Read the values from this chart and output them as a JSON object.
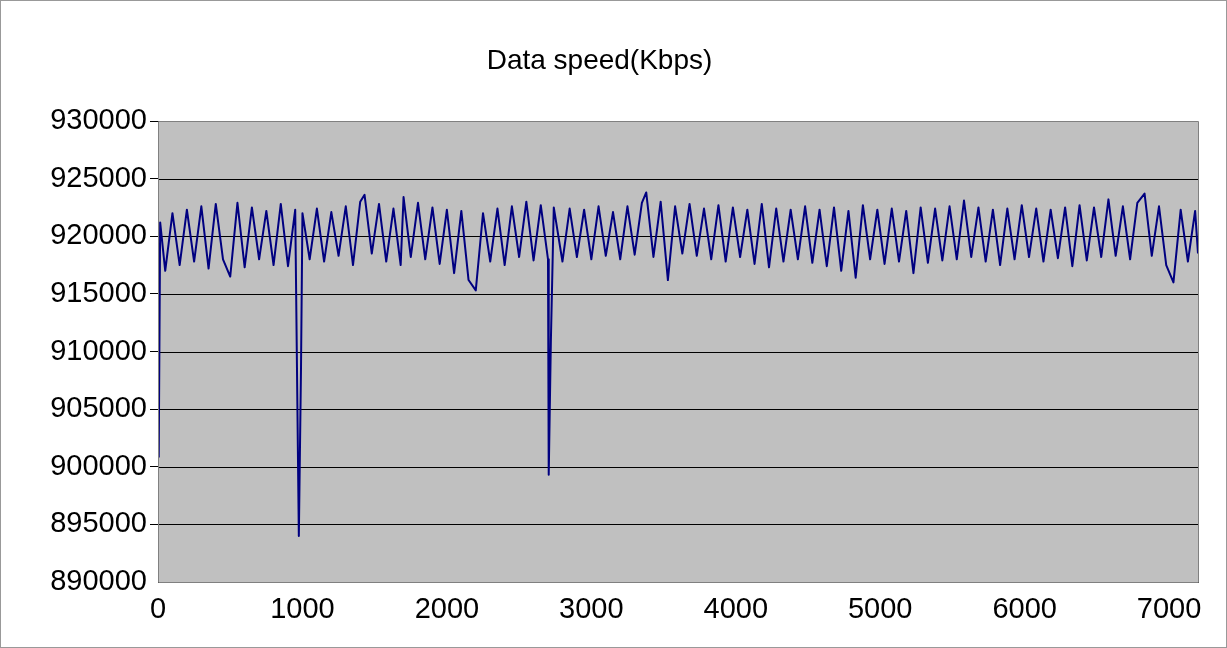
{
  "chart_data": {
    "type": "line",
    "title": "Data speed(Kbps)",
    "x": [
      5,
      15,
      50,
      100,
      150,
      200,
      250,
      300,
      350,
      400,
      450,
      500,
      550,
      600,
      650,
      700,
      750,
      800,
      850,
      900,
      950,
      975,
      990,
      1000,
      1050,
      1100,
      1150,
      1200,
      1250,
      1300,
      1350,
      1400,
      1430,
      1480,
      1530,
      1580,
      1630,
      1680,
      1700,
      1750,
      1800,
      1850,
      1900,
      1950,
      2000,
      2050,
      2100,
      2150,
      2200,
      2250,
      2300,
      2350,
      2400,
      2450,
      2500,
      2550,
      2600,
      2650,
      2700,
      2705,
      2720,
      2740,
      2800,
      2850,
      2900,
      2950,
      3000,
      3050,
      3100,
      3150,
      3200,
      3250,
      3300,
      3350,
      3380,
      3430,
      3480,
      3530,
      3580,
      3630,
      3680,
      3730,
      3780,
      3830,
      3880,
      3930,
      3980,
      4030,
      4080,
      4130,
      4180,
      4230,
      4280,
      4330,
      4380,
      4430,
      4480,
      4530,
      4580,
      4630,
      4680,
      4730,
      4780,
      4830,
      4880,
      4930,
      4980,
      5030,
      5080,
      5130,
      5180,
      5230,
      5280,
      5330,
      5380,
      5430,
      5480,
      5530,
      5580,
      5630,
      5680,
      5730,
      5780,
      5830,
      5880,
      5930,
      5980,
      6030,
      6080,
      6130,
      6180,
      6230,
      6280,
      6330,
      6380,
      6430,
      6480,
      6530,
      6580,
      6630,
      6680,
      6730,
      6780,
      6830,
      6880,
      6930,
      6980,
      7030,
      7080,
      7130,
      7180,
      7200
    ],
    "series": [
      {
        "color": "#000080",
        "values": [
          900800,
          921200,
          917000,
          922000,
          917500,
          922300,
          917800,
          922600,
          917200,
          922800,
          918000,
          916500,
          922900,
          917300,
          922500,
          918000,
          922200,
          917500,
          922800,
          917400,
          922300,
          894000,
          908500,
          922000,
          918000,
          922400,
          917800,
          922100,
          918300,
          922600,
          917500,
          923000,
          923600,
          918500,
          922800,
          917800,
          922400,
          917500,
          923400,
          918200,
          922900,
          918000,
          922500,
          917600,
          922300,
          916800,
          922200,
          916200,
          915300,
          922000,
          917800,
          922400,
          917500,
          922600,
          918200,
          923000,
          917900,
          922700,
          918000,
          899300,
          911000,
          922500,
          917800,
          922400,
          918200,
          922300,
          918000,
          922600,
          918300,
          922100,
          918000,
          922600,
          918400,
          922900,
          923800,
          918200,
          923000,
          916200,
          922600,
          918500,
          922800,
          918300,
          922400,
          918000,
          922700,
          917800,
          922500,
          918200,
          922300,
          917600,
          922800,
          917300,
          922400,
          917800,
          922300,
          918000,
          922600,
          917700,
          922300,
          917400,
          922500,
          917000,
          922200,
          916400,
          922700,
          918000,
          922300,
          917600,
          922400,
          917800,
          922200,
          916800,
          922500,
          917700,
          922400,
          917900,
          922600,
          918000,
          923100,
          918200,
          922500,
          917800,
          922300,
          917500,
          922400,
          918000,
          922700,
          918200,
          922400,
          917800,
          922300,
          918100,
          922500,
          917400,
          922700,
          917900,
          922500,
          918200,
          923200,
          918300,
          922600,
          918000,
          922900,
          923700,
          918300,
          922600,
          917500,
          916000,
          922300,
          917800,
          922200,
          918500
        ]
      }
    ],
    "xlim": [
      0,
      7200
    ],
    "xticks": [
      0,
      1000,
      2000,
      3000,
      4000,
      5000,
      6000,
      7000
    ],
    "ylim": [
      890000,
      930000
    ],
    "yticks": [
      890000,
      895000,
      900000,
      905000,
      910000,
      915000,
      920000,
      925000,
      930000
    ],
    "grid": "y",
    "legend": false,
    "marker": "none",
    "line_style": "solid"
  }
}
